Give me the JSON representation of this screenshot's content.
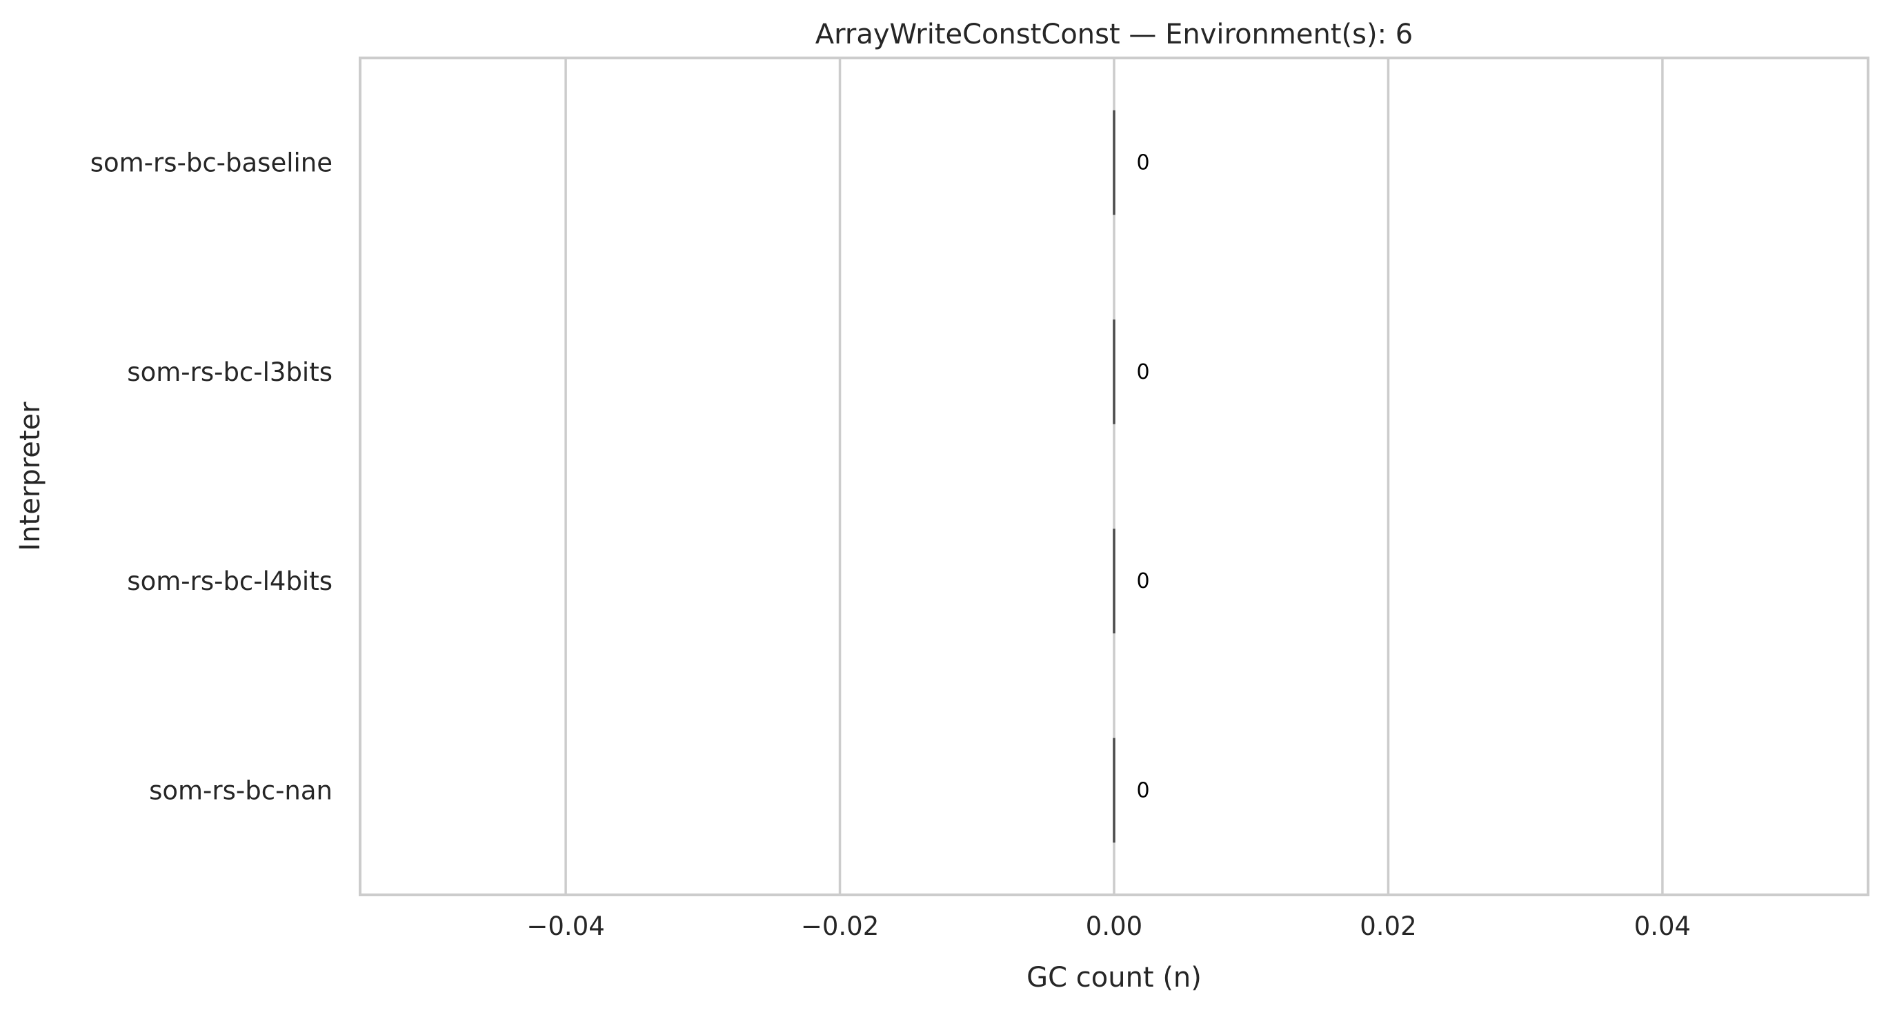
{
  "chart_data": {
    "type": "bar",
    "orientation": "horizontal",
    "title": "ArrayWriteConstConst — Environment(s): 6",
    "xlabel": "GC count (n)",
    "ylabel": "Interpreter",
    "categories": [
      "som-rs-bc-baseline",
      "som-rs-bc-l3bits",
      "som-rs-bc-l4bits",
      "som-rs-bc-nan"
    ],
    "values": [
      0,
      0,
      0,
      0
    ],
    "data_labels": [
      "0",
      "0",
      "0",
      "0"
    ],
    "xlim": [
      -0.055,
      0.055
    ],
    "xticks": [
      -0.04,
      -0.02,
      0.0,
      0.02,
      0.04
    ],
    "xtick_labels": [
      "−0.04",
      "−0.02",
      "0.00",
      "0.02",
      "0.04"
    ],
    "grid": "vertical",
    "colors": {
      "bar": "#4c4c4c",
      "grid": "#cccccc",
      "spine": "#cccccc",
      "text": "#262626"
    }
  }
}
